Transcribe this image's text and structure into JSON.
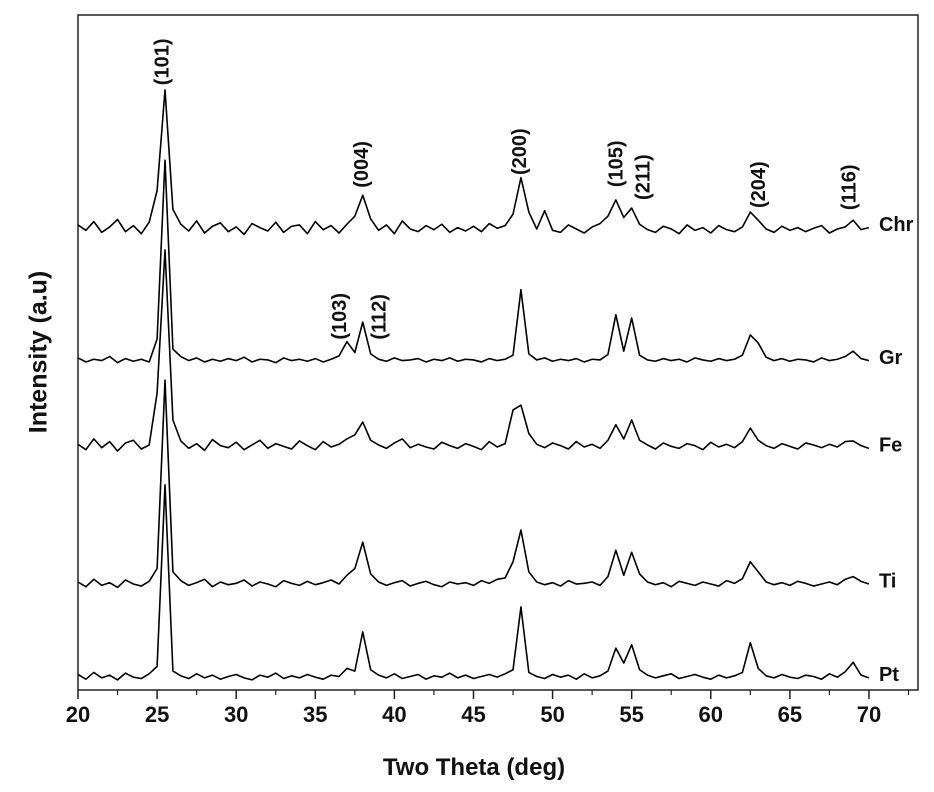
{
  "chart_data": {
    "type": "line",
    "xlabel": "Two Theta (deg)",
    "ylabel": "Intensity (a.u)",
    "xlim": [
      20,
      73.1
    ],
    "ylim": [
      0,
      100
    ],
    "xticks": [
      20,
      25,
      30,
      35,
      40,
      45,
      50,
      55,
      60,
      65,
      70
    ],
    "xminorticks": [
      22.5,
      27.5,
      32.5,
      37.5,
      42.5,
      47.5,
      52.5,
      57.5,
      62.5,
      67.5,
      72.5
    ],
    "x": [
      20,
      20.5,
      21,
      21.5,
      22,
      22.5,
      23,
      23.5,
      24,
      24.5,
      25,
      25.5,
      26,
      26.5,
      27,
      27.5,
      28,
      28.5,
      29,
      29.5,
      30,
      30.5,
      31,
      31.5,
      32,
      32.5,
      33,
      33.5,
      34,
      34.5,
      35,
      35.5,
      36,
      36.5,
      37,
      37.5,
      38,
      38.5,
      39,
      39.5,
      40,
      40.5,
      41,
      41.5,
      42,
      42.5,
      43,
      43.5,
      44,
      44.5,
      45,
      45.5,
      46,
      46.5,
      47,
      47.5,
      48,
      48.5,
      49,
      49.5,
      50,
      50.5,
      51,
      51.5,
      52,
      52.5,
      53,
      53.5,
      54,
      54.5,
      55,
      55.5,
      56,
      56.5,
      57,
      57.5,
      58,
      58.5,
      59,
      59.5,
      60,
      60.5,
      61,
      61.5,
      62,
      62.5,
      63,
      63.5,
      64,
      64.5,
      65,
      65.5,
      66,
      66.5,
      67,
      67.5,
      68,
      68.5,
      69,
      69.5,
      70
    ],
    "series": [
      {
        "name": "Chr",
        "color": "#000000",
        "values": [
          68.9,
          68.1,
          69.4,
          67.8,
          68.6,
          69.7,
          67.9,
          68.8,
          67.6,
          69.3,
          74.0,
          88.9,
          71.2,
          69.0,
          68.0,
          69.5,
          67.7,
          68.7,
          69.2,
          67.9,
          68.6,
          67.5,
          69.1,
          68.5,
          68.0,
          69.3,
          67.8,
          68.7,
          68.9,
          67.6,
          69.4,
          68.2,
          68.8,
          67.7,
          69.0,
          70.2,
          73.3,
          69.8,
          68.1,
          68.9,
          67.6,
          69.5,
          68.3,
          67.9,
          68.8,
          68.2,
          69.0,
          67.8,
          68.5,
          68.0,
          68.7,
          67.9,
          69.1,
          68.4,
          68.8,
          70.5,
          75.9,
          70.8,
          68.3,
          71.0,
          68.1,
          67.8,
          68.9,
          68.3,
          67.7,
          68.6,
          69.1,
          70.2,
          72.6,
          70.0,
          71.4,
          69.0,
          68.2,
          67.8,
          68.7,
          68.3,
          67.6,
          68.9,
          68.1,
          68.5,
          67.7,
          68.8,
          68.2,
          67.9,
          68.6,
          70.8,
          69.6,
          68.3,
          67.8,
          68.7,
          68.1,
          68.5,
          67.9,
          68.4,
          68.8,
          67.7,
          68.3,
          68.6,
          69.6,
          68.2,
          68.5
        ]
      },
      {
        "name": "Gr",
        "color": "#000000",
        "values": [
          49.2,
          48.6,
          49.0,
          48.8,
          49.4,
          48.5,
          49.1,
          48.7,
          49.0,
          48.6,
          52.0,
          78.5,
          50.5,
          49.4,
          48.8,
          49.2,
          48.6,
          49.0,
          48.7,
          49.1,
          48.8,
          49.3,
          48.6,
          49.0,
          48.9,
          48.5,
          49.2,
          48.8,
          49.0,
          48.7,
          49.1,
          48.6,
          49.0,
          49.5,
          51.6,
          50.0,
          54.5,
          49.8,
          49.0,
          48.7,
          49.2,
          48.8,
          48.9,
          49.1,
          48.6,
          49.0,
          48.8,
          49.2,
          48.7,
          49.0,
          48.9,
          48.6,
          49.1,
          48.8,
          49.0,
          49.6,
          59.3,
          49.8,
          48.9,
          49.2,
          48.7,
          49.0,
          48.8,
          49.1,
          48.6,
          49.0,
          48.9,
          49.7,
          55.6,
          50.2,
          55.1,
          49.6,
          48.9,
          48.7,
          49.1,
          48.8,
          49.0,
          48.6,
          49.2,
          48.9,
          48.7,
          49.1,
          48.8,
          49.0,
          49.6,
          52.6,
          51.4,
          49.3,
          48.8,
          49.1,
          48.7,
          49.0,
          48.9,
          48.6,
          49.2,
          48.8,
          49.0,
          49.4,
          50.2,
          49.1,
          48.8
        ]
      },
      {
        "name": "Fe",
        "color": "#000000",
        "values": [
          36.4,
          35.6,
          37.2,
          35.9,
          36.8,
          35.4,
          36.6,
          37.0,
          35.7,
          36.3,
          44.0,
          65.2,
          40.0,
          36.9,
          35.8,
          36.5,
          35.5,
          37.1,
          36.2,
          35.9,
          36.7,
          35.6,
          36.3,
          37.0,
          35.8,
          36.5,
          36.1,
          35.7,
          36.9,
          36.2,
          35.6,
          36.8,
          36.0,
          36.4,
          37.2,
          37.8,
          39.7,
          37.0,
          36.3,
          35.8,
          36.6,
          37.2,
          35.9,
          36.4,
          36.0,
          35.7,
          36.7,
          36.2,
          35.8,
          36.5,
          36.1,
          35.6,
          36.8,
          36.0,
          36.5,
          41.5,
          42.2,
          38.0,
          36.4,
          35.9,
          36.6,
          36.2,
          35.7,
          36.8,
          36.0,
          36.4,
          35.8,
          37.0,
          39.3,
          37.2,
          40.0,
          37.0,
          36.3,
          35.7,
          36.6,
          36.1,
          35.8,
          36.5,
          36.2,
          35.6,
          36.7,
          36.0,
          36.4,
          35.9,
          36.8,
          38.8,
          37.0,
          36.2,
          35.8,
          36.5,
          36.1,
          35.7,
          36.6,
          36.3,
          35.9,
          36.4,
          36.0,
          36.8,
          36.9,
          36.2,
          35.8
        ]
      },
      {
        "name": "Ti",
        "color": "#000000",
        "values": [
          16.0,
          15.3,
          16.4,
          15.5,
          15.9,
          15.2,
          16.3,
          15.7,
          15.4,
          16.1,
          18.0,
          45.9,
          17.5,
          16.2,
          15.5,
          15.9,
          16.4,
          15.3,
          16.0,
          15.6,
          15.8,
          16.3,
          15.4,
          16.0,
          15.7,
          15.3,
          16.2,
          15.8,
          15.5,
          16.1,
          15.6,
          15.9,
          16.3,
          15.7,
          17.0,
          18.0,
          21.9,
          17.2,
          16.0,
          15.5,
          15.9,
          16.2,
          15.4,
          15.8,
          16.1,
          15.6,
          15.3,
          16.0,
          15.7,
          15.9,
          15.5,
          16.2,
          15.8,
          16.4,
          16.6,
          19.0,
          23.7,
          17.5,
          16.0,
          15.6,
          15.9,
          15.4,
          16.2,
          15.7,
          15.8,
          16.0,
          15.5,
          16.8,
          20.7,
          17.0,
          20.4,
          17.2,
          16.0,
          15.6,
          15.9,
          15.3,
          16.1,
          15.8,
          15.5,
          16.0,
          15.7,
          15.4,
          16.2,
          15.8,
          16.5,
          19.0,
          17.5,
          16.0,
          15.6,
          15.9,
          15.5,
          16.1,
          15.8,
          15.4,
          15.7,
          16.0,
          15.6,
          16.4,
          16.8,
          16.1,
          15.7
        ]
      },
      {
        "name": "Pt",
        "color": "#000000",
        "values": [
          2.3,
          1.6,
          2.6,
          1.8,
          2.2,
          1.5,
          2.5,
          1.9,
          1.7,
          2.4,
          3.5,
          30.4,
          2.8,
          2.1,
          1.7,
          2.4,
          1.8,
          2.2,
          1.6,
          2.0,
          2.3,
          1.8,
          1.5,
          2.2,
          1.9,
          2.5,
          1.7,
          2.1,
          1.8,
          2.3,
          1.9,
          1.6,
          2.2,
          2.0,
          3.2,
          2.8,
          8.6,
          3.0,
          2.2,
          1.8,
          2.4,
          1.7,
          2.0,
          2.3,
          1.6,
          2.1,
          1.9,
          2.5,
          1.8,
          2.2,
          1.7,
          2.0,
          2.3,
          1.9,
          2.4,
          3.0,
          12.3,
          2.6,
          2.0,
          1.7,
          2.3,
          1.9,
          2.2,
          1.6,
          2.4,
          1.8,
          2.1,
          2.8,
          6.2,
          4.0,
          6.7,
          3.0,
          2.2,
          1.8,
          2.1,
          2.4,
          1.7,
          2.0,
          2.3,
          1.9,
          1.6,
          2.2,
          1.8,
          2.1,
          2.6,
          7.0,
          3.2,
          2.1,
          1.8,
          2.3,
          1.9,
          1.7,
          2.2,
          2.0,
          1.6,
          2.4,
          1.9,
          2.7,
          4.1,
          2.2,
          1.8
        ]
      }
    ],
    "annotations": [
      {
        "text": "(101)",
        "x": 25.4,
        "y": 89.6
      },
      {
        "text": "(004)",
        "x": 38,
        "y": 74.4
      },
      {
        "text": "(200)",
        "x": 48,
        "y": 76.3
      },
      {
        "text": "(105)",
        "x": 54.1,
        "y": 74.5
      },
      {
        "text": "(211)",
        "x": 55.8,
        "y": 72.6
      },
      {
        "text": "(204)",
        "x": 63.1,
        "y": 71.4
      },
      {
        "text": "(116)",
        "x": 68.8,
        "y": 71.1
      },
      {
        "text": "(103)",
        "x": 36.6,
        "y": 51.9
      },
      {
        "text": "(112)",
        "x": 39.1,
        "y": 51.9
      }
    ]
  }
}
